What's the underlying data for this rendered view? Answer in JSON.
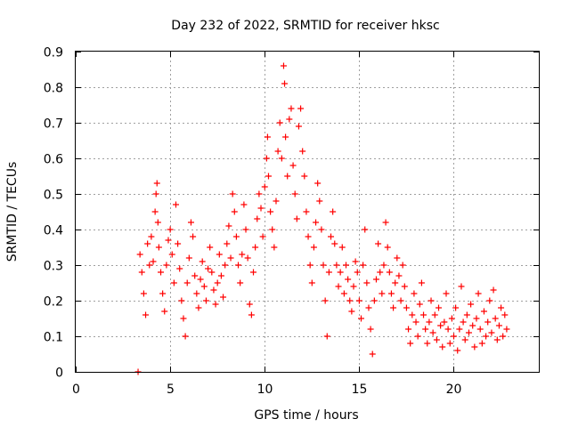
{
  "chart_data": {
    "type": "scatter",
    "title": "Day 232 of 2022, SRMTID for receiver hksc",
    "xlabel": "GPS time / hours",
    "ylabel": "SRMTID / TECUs",
    "xlim": [
      0,
      24.5
    ],
    "ylim": [
      0,
      0.9
    ],
    "x_ticks": [
      0,
      5,
      10,
      15,
      20
    ],
    "y_ticks": [
      0,
      0.1,
      0.2,
      0.3,
      0.4,
      0.5,
      0.6,
      0.7,
      0.8,
      0.9
    ],
    "x_tick_labels": [
      "0",
      "5",
      "10",
      "15",
      "20"
    ],
    "y_tick_labels": [
      "0",
      "0.1",
      "0.2",
      "0.3",
      "0.4",
      "0.5",
      "0.6",
      "0.7",
      "0.8",
      "0.9"
    ],
    "grid": true,
    "marker": "plus",
    "color": "#ff0000",
    "series": [
      {
        "name": "SRMTID",
        "points": [
          [
            3.3,
            0.0
          ],
          [
            3.4,
            0.33
          ],
          [
            3.5,
            0.28
          ],
          [
            3.6,
            0.22
          ],
          [
            3.7,
            0.16
          ],
          [
            3.8,
            0.36
          ],
          [
            3.9,
            0.3
          ],
          [
            4.0,
            0.38
          ],
          [
            4.1,
            0.31
          ],
          [
            4.2,
            0.45
          ],
          [
            4.25,
            0.5
          ],
          [
            4.3,
            0.53
          ],
          [
            4.35,
            0.42
          ],
          [
            4.4,
            0.35
          ],
          [
            4.5,
            0.28
          ],
          [
            4.6,
            0.22
          ],
          [
            4.7,
            0.17
          ],
          [
            4.8,
            0.3
          ],
          [
            4.9,
            0.37
          ],
          [
            5.0,
            0.4
          ],
          [
            5.1,
            0.33
          ],
          [
            5.2,
            0.25
          ],
          [
            5.3,
            0.47
          ],
          [
            5.4,
            0.36
          ],
          [
            5.5,
            0.29
          ],
          [
            5.6,
            0.2
          ],
          [
            5.7,
            0.15
          ],
          [
            5.8,
            0.1
          ],
          [
            5.9,
            0.25
          ],
          [
            6.0,
            0.32
          ],
          [
            6.1,
            0.42
          ],
          [
            6.2,
            0.38
          ],
          [
            6.3,
            0.27
          ],
          [
            6.4,
            0.22
          ],
          [
            6.5,
            0.18
          ],
          [
            6.6,
            0.26
          ],
          [
            6.7,
            0.31
          ],
          [
            6.8,
            0.24
          ],
          [
            6.9,
            0.2
          ],
          [
            7.0,
            0.29
          ],
          [
            7.1,
            0.35
          ],
          [
            7.2,
            0.28
          ],
          [
            7.3,
            0.23
          ],
          [
            7.4,
            0.19
          ],
          [
            7.5,
            0.25
          ],
          [
            7.6,
            0.33
          ],
          [
            7.7,
            0.27
          ],
          [
            7.8,
            0.21
          ],
          [
            7.9,
            0.3
          ],
          [
            8.0,
            0.36
          ],
          [
            8.1,
            0.41
          ],
          [
            8.2,
            0.32
          ],
          [
            8.3,
            0.5
          ],
          [
            8.4,
            0.45
          ],
          [
            8.5,
            0.38
          ],
          [
            8.6,
            0.3
          ],
          [
            8.7,
            0.25
          ],
          [
            8.8,
            0.33
          ],
          [
            8.9,
            0.47
          ],
          [
            9.0,
            0.4
          ],
          [
            9.1,
            0.32
          ],
          [
            9.2,
            0.19
          ],
          [
            9.3,
            0.16
          ],
          [
            9.4,
            0.28
          ],
          [
            9.5,
            0.35
          ],
          [
            9.6,
            0.43
          ],
          [
            9.7,
            0.5
          ],
          [
            9.8,
            0.46
          ],
          [
            9.9,
            0.38
          ],
          [
            10.0,
            0.52
          ],
          [
            10.1,
            0.6
          ],
          [
            10.15,
            0.66
          ],
          [
            10.2,
            0.55
          ],
          [
            10.3,
            0.45
          ],
          [
            10.4,
            0.4
          ],
          [
            10.5,
            0.35
          ],
          [
            10.6,
            0.48
          ],
          [
            10.7,
            0.62
          ],
          [
            10.8,
            0.7
          ],
          [
            10.9,
            0.6
          ],
          [
            11.0,
            0.86
          ],
          [
            11.05,
            0.81
          ],
          [
            11.1,
            0.66
          ],
          [
            11.2,
            0.55
          ],
          [
            11.3,
            0.71
          ],
          [
            11.4,
            0.74
          ],
          [
            11.5,
            0.58
          ],
          [
            11.6,
            0.5
          ],
          [
            11.7,
            0.43
          ],
          [
            11.8,
            0.69
          ],
          [
            11.9,
            0.74
          ],
          [
            12.0,
            0.62
          ],
          [
            12.1,
            0.55
          ],
          [
            12.2,
            0.45
          ],
          [
            12.3,
            0.38
          ],
          [
            12.4,
            0.3
          ],
          [
            12.5,
            0.25
          ],
          [
            12.6,
            0.35
          ],
          [
            12.7,
            0.42
          ],
          [
            12.8,
            0.53
          ],
          [
            12.9,
            0.48
          ],
          [
            13.0,
            0.4
          ],
          [
            13.1,
            0.3
          ],
          [
            13.2,
            0.2
          ],
          [
            13.3,
            0.1
          ],
          [
            13.4,
            0.28
          ],
          [
            13.5,
            0.38
          ],
          [
            13.6,
            0.45
          ],
          [
            13.7,
            0.36
          ],
          [
            13.8,
            0.3
          ],
          [
            13.9,
            0.24
          ],
          [
            14.0,
            0.28
          ],
          [
            14.1,
            0.35
          ],
          [
            14.2,
            0.22
          ],
          [
            14.3,
            0.3
          ],
          [
            14.4,
            0.26
          ],
          [
            14.5,
            0.2
          ],
          [
            14.6,
            0.17
          ],
          [
            14.7,
            0.24
          ],
          [
            14.8,
            0.31
          ],
          [
            14.9,
            0.28
          ],
          [
            15.0,
            0.2
          ],
          [
            15.1,
            0.15
          ],
          [
            15.2,
            0.3
          ],
          [
            15.3,
            0.4
          ],
          [
            15.4,
            0.25
          ],
          [
            15.5,
            0.18
          ],
          [
            15.6,
            0.12
          ],
          [
            15.7,
            0.05
          ],
          [
            15.8,
            0.2
          ],
          [
            15.9,
            0.26
          ],
          [
            16.0,
            0.36
          ],
          [
            16.1,
            0.28
          ],
          [
            16.2,
            0.22
          ],
          [
            16.3,
            0.3
          ],
          [
            16.4,
            0.42
          ],
          [
            16.5,
            0.35
          ],
          [
            16.6,
            0.28
          ],
          [
            16.7,
            0.22
          ],
          [
            16.8,
            0.18
          ],
          [
            16.9,
            0.25
          ],
          [
            17.0,
            0.32
          ],
          [
            17.1,
            0.27
          ],
          [
            17.2,
            0.2
          ],
          [
            17.3,
            0.3
          ],
          [
            17.4,
            0.24
          ],
          [
            17.5,
            0.18
          ],
          [
            17.6,
            0.12
          ],
          [
            17.7,
            0.08
          ],
          [
            17.8,
            0.16
          ],
          [
            17.9,
            0.22
          ],
          [
            18.0,
            0.14
          ],
          [
            18.1,
            0.1
          ],
          [
            18.2,
            0.19
          ],
          [
            18.3,
            0.25
          ],
          [
            18.4,
            0.16
          ],
          [
            18.5,
            0.12
          ],
          [
            18.6,
            0.08
          ],
          [
            18.7,
            0.14
          ],
          [
            18.8,
            0.2
          ],
          [
            18.9,
            0.11
          ],
          [
            19.0,
            0.16
          ],
          [
            19.1,
            0.09
          ],
          [
            19.2,
            0.18
          ],
          [
            19.3,
            0.13
          ],
          [
            19.4,
            0.07
          ],
          [
            19.5,
            0.14
          ],
          [
            19.6,
            0.22
          ],
          [
            19.7,
            0.12
          ],
          [
            19.8,
            0.08
          ],
          [
            19.9,
            0.15
          ],
          [
            20.0,
            0.1
          ],
          [
            20.1,
            0.18
          ],
          [
            20.2,
            0.06
          ],
          [
            20.3,
            0.12
          ],
          [
            20.4,
            0.24
          ],
          [
            20.5,
            0.14
          ],
          [
            20.6,
            0.09
          ],
          [
            20.7,
            0.16
          ],
          [
            20.8,
            0.11
          ],
          [
            20.9,
            0.19
          ],
          [
            21.0,
            0.13
          ],
          [
            21.1,
            0.07
          ],
          [
            21.2,
            0.15
          ],
          [
            21.3,
            0.22
          ],
          [
            21.4,
            0.12
          ],
          [
            21.5,
            0.08
          ],
          [
            21.6,
            0.17
          ],
          [
            21.7,
            0.1
          ],
          [
            21.8,
            0.14
          ],
          [
            21.9,
            0.2
          ],
          [
            22.0,
            0.11
          ],
          [
            22.1,
            0.23
          ],
          [
            22.2,
            0.15
          ],
          [
            22.3,
            0.09
          ],
          [
            22.4,
            0.13
          ],
          [
            22.5,
            0.18
          ],
          [
            22.6,
            0.1
          ],
          [
            22.7,
            0.16
          ],
          [
            22.8,
            0.12
          ]
        ]
      }
    ]
  }
}
